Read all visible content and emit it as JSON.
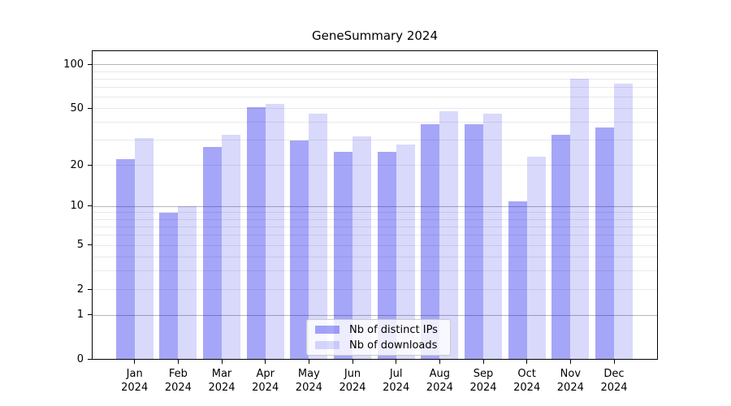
{
  "title": "GeneSummary 2024",
  "colors": {
    "bar_ips": "rgba(0,0,235,0.35)",
    "bar_downloads": "rgba(0,0,235,0.15)",
    "grid_major": "#b6b6b6",
    "grid_minor": "#e9e9e9",
    "axis": "#000000",
    "legend_border": "#cbcbcb"
  },
  "chart_data": {
    "type": "bar",
    "title": "GeneSummary 2024",
    "categories": [
      "Jan",
      "Feb",
      "Mar",
      "Apr",
      "May",
      "Jun",
      "Jul",
      "Aug",
      "Sep",
      "Oct",
      "Nov",
      "Dec"
    ],
    "year": "2024",
    "series": [
      {
        "name": "Nb of distinct IPs",
        "values": [
          22,
          9,
          27,
          51,
          30,
          25,
          25,
          39,
          39,
          11,
          33,
          37
        ]
      },
      {
        "name": "Nb of downloads",
        "values": [
          31,
          10,
          33,
          54,
          46,
          32,
          28,
          48,
          46,
          23,
          80,
          74
        ]
      }
    ],
    "y_scale": "log1p",
    "ylim": [
      0,
      126
    ],
    "y_ticks": [
      0,
      1,
      2,
      5,
      10,
      20,
      50,
      100
    ],
    "y_major_gridlines": [
      1,
      10,
      100
    ],
    "y_minor_gridlines": [
      2,
      3,
      4,
      5,
      6,
      7,
      8,
      9,
      20,
      30,
      40,
      50,
      60,
      70,
      80,
      90
    ],
    "grid": true,
    "legend_position": "lower center",
    "xlabel": "",
    "ylabel": ""
  }
}
